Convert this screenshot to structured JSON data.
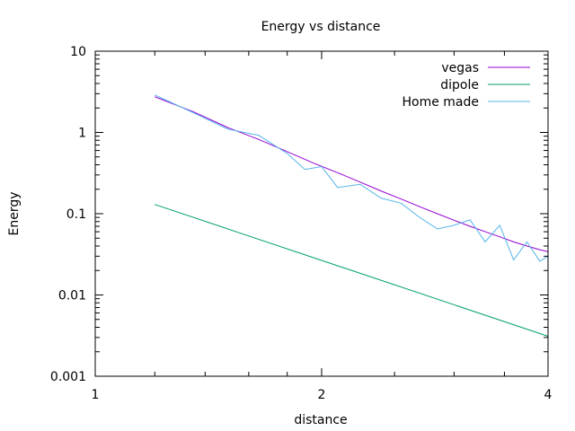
{
  "chart_data": {
    "type": "line",
    "title": "Energy vs distance",
    "xlabel": "distance",
    "ylabel": "Energy",
    "xscale": "log",
    "yscale": "log",
    "xlim": [
      1,
      4
    ],
    "ylim": [
      0.001,
      10
    ],
    "xticks": [
      {
        "value": 1,
        "label": "1"
      },
      {
        "value": 2,
        "label": "2"
      },
      {
        "value": 4,
        "label": "4"
      }
    ],
    "yticks": [
      {
        "value": 0.001,
        "label": "0.001"
      },
      {
        "value": 0.01,
        "label": "0.01"
      },
      {
        "value": 0.1,
        "label": "0.1"
      },
      {
        "value": 1,
        "label": "1"
      },
      {
        "value": 10,
        "label": "10"
      }
    ],
    "grid": false,
    "legend_position": "top-right",
    "series": [
      {
        "name": "vegas",
        "color": "#9400d3",
        "x": [
          1.2,
          1.35,
          1.5,
          1.65,
          1.8,
          1.95,
          2.1,
          2.25,
          2.4,
          2.55,
          2.7,
          2.85,
          3.0,
          3.15,
          3.3,
          3.45,
          3.6,
          3.75,
          3.9,
          4.0
        ],
        "y": [
          2.75,
          1.8,
          1.15,
          0.82,
          0.58,
          0.42,
          0.32,
          0.245,
          0.19,
          0.152,
          0.122,
          0.1,
          0.083,
          0.07,
          0.06,
          0.052,
          0.045,
          0.04,
          0.036,
          0.034
        ]
      },
      {
        "name": "dipole",
        "color": "#009e73",
        "x": [
          1.2,
          4.0
        ],
        "y": [
          0.13,
          0.0031
        ]
      },
      {
        "name": "Home made",
        "color": "#56b4e9",
        "x": [
          1.2,
          1.35,
          1.5,
          1.65,
          1.8,
          1.9,
          2.0,
          2.1,
          2.25,
          2.4,
          2.55,
          2.7,
          2.85,
          3.0,
          3.15,
          3.3,
          3.45,
          3.6,
          3.75,
          3.9,
          4.0
        ],
        "y": [
          2.9,
          1.75,
          1.1,
          0.92,
          0.55,
          0.35,
          0.38,
          0.21,
          0.23,
          0.155,
          0.135,
          0.09,
          0.065,
          0.072,
          0.084,
          0.045,
          0.072,
          0.027,
          0.045,
          0.026,
          0.03
        ]
      }
    ]
  }
}
